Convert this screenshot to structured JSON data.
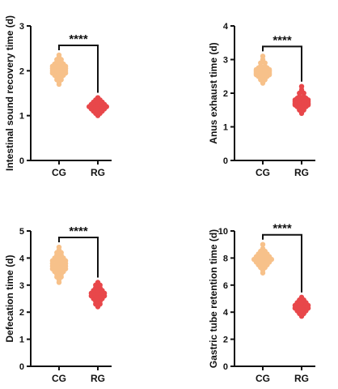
{
  "chart_data": [
    {
      "type": "scatter",
      "ylabel": "Intestinal sound recovery time (d)",
      "ylim": [
        0,
        3
      ],
      "yticks": [
        0,
        1,
        2,
        3
      ],
      "categories": [
        "CG",
        "RG"
      ],
      "significance": "****",
      "series": [
        {
          "color": "#f7c18a",
          "values": [
            1.7,
            1.75,
            1.8,
            1.85,
            1.9,
            1.95,
            2.0,
            2.05,
            2.1,
            2.15,
            2.2,
            2.25,
            2.3,
            2.35
          ]
        },
        {
          "color": "#e8474a",
          "values": [
            1.0,
            1.05,
            1.1,
            1.15,
            1.2,
            1.25,
            1.3,
            1.35,
            1.4
          ]
        }
      ]
    },
    {
      "type": "scatter",
      "ylabel": "Anus exhaust time (d)",
      "ylim": [
        0,
        4
      ],
      "yticks": [
        0,
        1,
        2,
        3,
        4
      ],
      "categories": [
        "CG",
        "RG"
      ],
      "significance": "****",
      "series": [
        {
          "color": "#f7c18a",
          "values": [
            2.3,
            2.35,
            2.4,
            2.45,
            2.5,
            2.55,
            2.6,
            2.65,
            2.7,
            2.75,
            2.8,
            2.9,
            3.0,
            3.1
          ]
        },
        {
          "color": "#e8474a",
          "values": [
            1.4,
            1.45,
            1.5,
            1.55,
            1.6,
            1.65,
            1.7,
            1.75,
            1.8,
            1.85,
            1.9,
            2.0,
            2.1,
            2.2
          ]
        }
      ]
    },
    {
      "type": "scatter",
      "ylabel": "Defecation time (d)",
      "ylim": [
        0,
        5
      ],
      "yticks": [
        0,
        1,
        2,
        3,
        4,
        5
      ],
      "categories": [
        "CG",
        "RG"
      ],
      "significance": "****",
      "series": [
        {
          "color": "#f7c18a",
          "values": [
            3.1,
            3.2,
            3.3,
            3.4,
            3.5,
            3.6,
            3.7,
            3.8,
            3.9,
            4.0,
            4.1,
            4.2,
            4.3,
            4.4
          ]
        },
        {
          "color": "#e8474a",
          "values": [
            2.2,
            2.3,
            2.4,
            2.5,
            2.6,
            2.7,
            2.8,
            2.9,
            3.0,
            3.1
          ]
        }
      ]
    },
    {
      "type": "scatter",
      "ylabel": "Gastric tube retention time (d)",
      "ylim": [
        0,
        10
      ],
      "yticks": [
        0,
        2,
        4,
        6,
        8,
        10
      ],
      "categories": [
        "CG",
        "RG"
      ],
      "significance": "****",
      "series": [
        {
          "color": "#f7c18a",
          "values": [
            6.9,
            7.1,
            7.3,
            7.5,
            7.7,
            7.9,
            8.1,
            8.3,
            8.5,
            8.7,
            9.0
          ]
        },
        {
          "color": "#e8474a",
          "values": [
            3.7,
            3.9,
            4.1,
            4.3,
            4.5,
            4.7,
            4.9,
            5.1
          ]
        }
      ]
    }
  ]
}
